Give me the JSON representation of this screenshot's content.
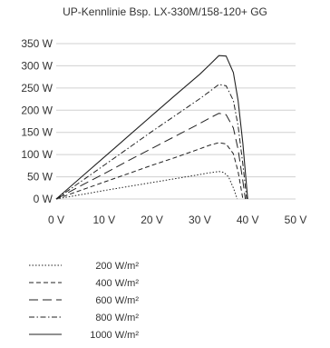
{
  "chart_data": {
    "type": "line",
    "title": "UP-Kennlinie Bsp. LX-330M/158-120+ GG",
    "xlabel": "",
    "ylabel": "",
    "xlim": [
      0,
      50
    ],
    "ylim": [
      0,
      350
    ],
    "x_ticks": [
      0,
      10,
      20,
      30,
      40,
      50
    ],
    "x_tick_labels": [
      "0 V",
      "10 V",
      "20 V",
      "30 V",
      "40 V",
      "50 V"
    ],
    "y_ticks": [
      0,
      50,
      100,
      150,
      200,
      250,
      300,
      350
    ],
    "y_tick_labels": [
      "0 W",
      "50 W",
      "100 W",
      "150 W",
      "200 W",
      "250 W",
      "300 W",
      "350 W"
    ],
    "grid": "horizontal",
    "legend_position": "bottom-left",
    "series": [
      {
        "name": "200 W/m²",
        "dash": "dotted",
        "color": "#222222",
        "x": [
          0,
          5,
          10,
          15,
          20,
          25,
          30,
          32,
          34,
          35,
          36,
          37,
          37.5,
          37.8
        ],
        "y": [
          0,
          9.5,
          19,
          28,
          37,
          46,
          55,
          59,
          62,
          60,
          50,
          25,
          10,
          0
        ]
      },
      {
        "name": "400 W/m²",
        "dash": "short-dash",
        "color": "#222222",
        "x": [
          0,
          5,
          10,
          15,
          20,
          25,
          30,
          32,
          34,
          35.5,
          37,
          38,
          38.6,
          39
        ],
        "y": [
          0,
          19,
          38,
          57,
          76,
          94,
          113,
          121,
          127,
          124,
          102,
          62,
          25,
          0
        ]
      },
      {
        "name": "600 W/m²",
        "dash": "long-dash",
        "color": "#222222",
        "x": [
          0,
          5,
          10,
          15,
          20,
          25,
          30,
          32,
          34,
          35.5,
          37,
          38,
          39,
          39.5
        ],
        "y": [
          0,
          29,
          57,
          86,
          114,
          142,
          170,
          182,
          193,
          190,
          160,
          112,
          40,
          0
        ]
      },
      {
        "name": "800 W/m²",
        "dash": "dash-dot",
        "color": "#222222",
        "x": [
          0,
          5,
          10,
          15,
          20,
          25,
          30,
          32,
          34,
          35.5,
          37,
          38,
          39,
          39.8
        ],
        "y": [
          0,
          38,
          76,
          114,
          152,
          189,
          226,
          242,
          258,
          255,
          222,
          165,
          78,
          0
        ]
      },
      {
        "name": "1000 W/m²",
        "dash": "solid",
        "color": "#222222",
        "x": [
          0,
          5,
          10,
          15,
          20,
          25,
          30,
          32,
          34,
          35.5,
          37,
          38,
          39,
          40
        ],
        "y": [
          0,
          47,
          94,
          141,
          188,
          235,
          281,
          302,
          323,
          322,
          285,
          222,
          125,
          0
        ]
      }
    ]
  }
}
